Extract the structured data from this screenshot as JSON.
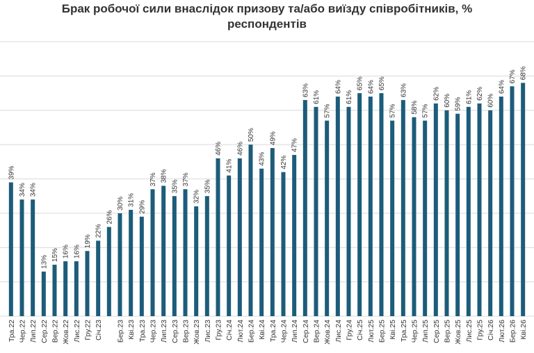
{
  "chart_data": {
    "type": "bar",
    "title": [
      "Брак робочої сили внаслідок призову та/або виїзду співробітників, %",
      "респондентів"
    ],
    "categories": [
      "Тра.22",
      "Чер.22",
      "Лип.22",
      "Сер.22",
      "Вер.22",
      "Жов.22",
      "Лис.22",
      "Гру.22",
      "Січ.23",
      null,
      "Бер.23",
      "Кві.23",
      "Тра.23",
      "Чер.23",
      "Лип.23",
      "Сер.23",
      "Вер.23",
      "Жов.23",
      "Лис.23",
      "Гру.23",
      "Січ.24",
      "Лют.24",
      "Бер.24",
      "Кві.24",
      "Тра.24",
      "Чер.24",
      "Лип.24",
      "Сер.24",
      "Вер.24",
      "Жов.24",
      "Лис.24",
      "Гру.24",
      "Січ.25",
      "Лют.25",
      "Бер.25",
      "Кві.25",
      "Тра.25",
      "Чер.25",
      "Лип.25",
      "Сер.25",
      "Вер.25",
      "Жов.25",
      "Лис.25",
      "Гру.25",
      "Січ.26",
      "Лют.26",
      "Бер.26",
      "Кві.26"
    ],
    "values": [
      39,
      34,
      34,
      13,
      15,
      16,
      16,
      19,
      22,
      26,
      30,
      31,
      29,
      37,
      38,
      35,
      37,
      32,
      35,
      46,
      41,
      46,
      50,
      43,
      49,
      42,
      47,
      63,
      61,
      57,
      64,
      61,
      65,
      64,
      65,
      57,
      63,
      58,
      57,
      62,
      60,
      59,
      61,
      62,
      60,
      64,
      67,
      68
    ],
    "value_labels": [
      "39%",
      "34%",
      "34%",
      "13%",
      "15%",
      "16%",
      "16%",
      "19%",
      "22%",
      "26%",
      "30%",
      "31%",
      "29%",
      "37%",
      "38%",
      "35%",
      "37%",
      "32%",
      "35%",
      "46%",
      "41%",
      "46%",
      "50%",
      "43%",
      "49%",
      "42%",
      "47%",
      "63%",
      "61%",
      "57%",
      "64%",
      "61%",
      "65%",
      "64%",
      "65%",
      "57%",
      "63%",
      "58%",
      "57%",
      "62%",
      "60%",
      "59%",
      "61%",
      "62%",
      "60%",
      "64%",
      "67%",
      "68%"
    ],
    "color": "#1d5c7a",
    "ylim": [
      0,
      80
    ],
    "yticks": [
      0,
      10,
      20,
      30,
      40,
      50,
      60,
      70,
      80
    ],
    "grid": true
  }
}
